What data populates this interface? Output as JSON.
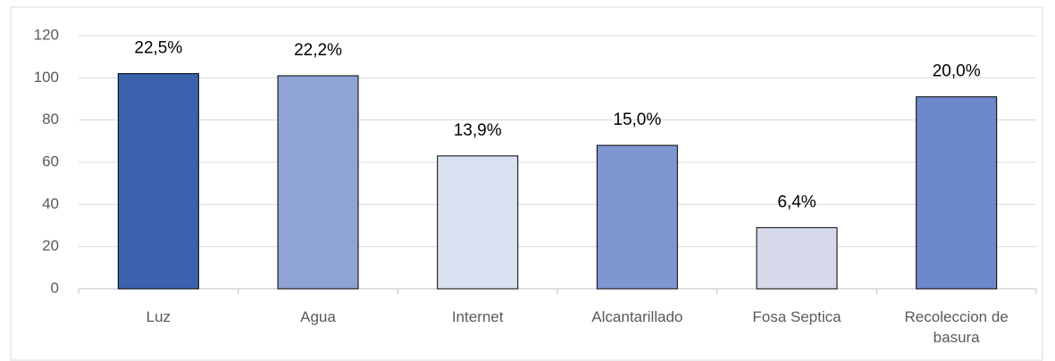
{
  "chart_data": {
    "type": "bar",
    "categories": [
      "Luz",
      "Agua",
      "Internet",
      "Alcantarillado",
      "Fosa Septica",
      "Recoleccion de basura"
    ],
    "values": [
      102,
      101,
      63,
      68,
      29,
      91
    ],
    "value_labels": [
      "22,5%",
      "22,2%",
      "13,9%",
      "15,0%",
      "6,4%",
      "20,0%"
    ],
    "colors": [
      "#3a62ad",
      "#8fa3d4",
      "#d9e0f0",
      "#7f97d0",
      "#d5d9ea",
      "#6d89cc"
    ],
    "ylim": [
      0,
      120
    ],
    "yticks": [
      0,
      20,
      40,
      60,
      80,
      100,
      120
    ],
    "grid": true
  }
}
